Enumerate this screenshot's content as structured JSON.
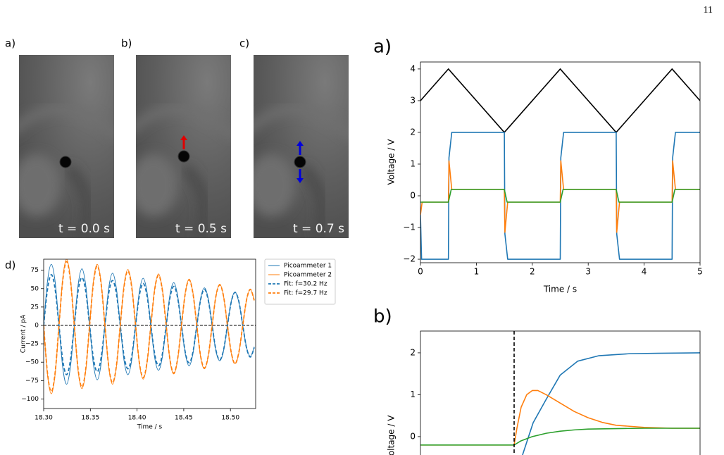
{
  "page_number": "11",
  "photos": [
    {
      "label": "a)",
      "caption": "t = 0.0 s"
    },
    {
      "label": "b)",
      "caption": "t = 0.5 s"
    },
    {
      "label": "c)",
      "caption": "t = 0.7 s"
    }
  ],
  "chart_data": [
    {
      "type": "line",
      "title": "d)",
      "xlabel": "Time / s",
      "ylabel": "Current / pA",
      "x": [
        18.3,
        18.3041,
        18.3082,
        18.3123,
        18.3164,
        18.3205,
        18.3246,
        18.3287,
        18.3328,
        18.3369,
        18.341,
        18.3451,
        18.3492,
        18.3533,
        18.3574,
        18.3615,
        18.3656,
        18.3697,
        18.3738,
        18.3779,
        18.382,
        18.3861,
        18.3902,
        18.3943,
        18.3984,
        18.4025,
        18.4066,
        18.4107,
        18.4148,
        18.4189,
        18.423,
        18.4271,
        18.4312,
        18.4353,
        18.4394,
        18.4435,
        18.4476,
        18.4517,
        18.4558,
        18.4599,
        18.464,
        18.4681,
        18.4722,
        18.4763,
        18.4804,
        18.4845,
        18.4886,
        18.4927,
        18.4968,
        18.5009,
        18.505,
        18.5091,
        18.5132,
        18.5173,
        18.5214,
        18.5255
      ],
      "series": [
        {
          "name": "Picoammeter 1",
          "color": "#1f77b4",
          "dash": false,
          "values": [
            0,
            60,
            83,
            59,
            0,
            -58,
            -80,
            -56,
            0,
            55,
            77,
            54,
            0,
            -53,
            -74,
            -52,
            0,
            51,
            71,
            50,
            0,
            -48,
            -67,
            -47,
            0,
            46,
            64,
            45,
            0,
            -44,
            -61,
            -43,
            0,
            42,
            58,
            40,
            0,
            -39,
            -55,
            -38,
            0,
            37,
            51,
            36,
            0,
            -35,
            -48,
            -34,
            0,
            33,
            45,
            31,
            0,
            -30,
            -42,
            -29
          ]
        },
        {
          "name": "Picoammeter 2",
          "color": "#ff7f0e",
          "dash": false,
          "values": [
            0,
            -67,
            -93,
            -66,
            0,
            64,
            90,
            63,
            0,
            -62,
            -86,
            -61,
            0,
            60,
            83,
            58,
            0,
            -57,
            -80,
            -56,
            0,
            55,
            76,
            54,
            0,
            -52,
            -73,
            -51,
            0,
            50,
            70,
            49,
            0,
            -48,
            -66,
            -46,
            0,
            45,
            63,
            44,
            0,
            -43,
            -59,
            -41,
            0,
            40,
            56,
            39,
            0,
            -38,
            -52,
            -37,
            0,
            35,
            49,
            34
          ]
        },
        {
          "name": "Fit: f=30.2 Hz",
          "color": "#1f77b4",
          "dash": true,
          "values": [
            0,
            49,
            69,
            49,
            0,
            -48,
            -67,
            -47,
            0,
            47,
            65,
            46,
            0,
            -45,
            -63,
            -44,
            0,
            44,
            61,
            43,
            0,
            -42,
            -59,
            -42,
            0,
            41,
            57,
            40,
            0,
            -39,
            -55,
            -39,
            0,
            38,
            53,
            37,
            0,
            -37,
            -51,
            -36,
            0,
            35,
            49,
            34,
            0,
            -34,
            -47,
            -33,
            0,
            32,
            45,
            32,
            0,
            -31,
            -43,
            -30
          ]
        },
        {
          "name": "Fit: f=29.7 Hz",
          "color": "#ff7f0e",
          "dash": true,
          "values": [
            0,
            -65,
            -90,
            -64,
            0,
            62,
            87,
            61,
            0,
            -60,
            -84,
            -59,
            0,
            58,
            81,
            57,
            0,
            -56,
            -78,
            -55,
            0,
            53,
            74,
            52,
            0,
            -51,
            -71,
            -50,
            0,
            49,
            68,
            48,
            0,
            -47,
            -65,
            -45,
            0,
            44,
            62,
            43,
            0,
            -42,
            -58,
            -41,
            0,
            40,
            55,
            39,
            0,
            -37,
            -52,
            -36,
            0,
            35,
            49,
            34
          ]
        }
      ],
      "hline": 0,
      "xlim": [
        18.3,
        18.527
      ],
      "ylim": [
        -113,
        90
      ],
      "xticks": [
        {
          "value": 18.3,
          "label": "18.30"
        },
        18.35,
        {
          "value": 18.4,
          "label": "18.40"
        },
        18.45,
        {
          "value": 18.5,
          "label": "18.50"
        }
      ],
      "yticks": [
        {
          "value": -100,
          "label": "−100"
        },
        {
          "value": -75,
          "label": "−75"
        },
        {
          "value": -50,
          "label": "−50"
        },
        {
          "value": -25,
          "label": "−25"
        },
        0,
        25,
        50,
        75
      ],
      "legend": "outside right"
    },
    {
      "type": "line",
      "title": "a)",
      "xlabel": "Time / s",
      "ylabel": "Voltage / V",
      "series": [
        {
          "color": "#000000",
          "x": [
            0,
            0.5,
            1.5,
            2.5,
            3.5,
            4.5,
            5
          ],
          "values": [
            3,
            4,
            2,
            4,
            2,
            4,
            3
          ]
        },
        {
          "color": "#1f77b4",
          "x": [
            0,
            0.02,
            0.5,
            0.51,
            0.56,
            1.5,
            1.51,
            1.56,
            2.5,
            2.51,
            2.56,
            3.5,
            3.51,
            3.56,
            4.5,
            4.51,
            4.56,
            5
          ],
          "values": [
            -0.6,
            -2,
            -2,
            1.2,
            2,
            2,
            -1.2,
            -2,
            -2,
            1.2,
            2,
            2,
            -1.2,
            -2,
            -2,
            1.2,
            2,
            2
          ]
        },
        {
          "color": "#ff7f0e",
          "x": [
            0,
            0.03,
            0.5,
            0.51,
            0.56,
            1.5,
            1.51,
            1.56,
            2.5,
            2.51,
            2.56,
            3.5,
            3.51,
            3.56,
            4.5,
            4.51,
            4.56,
            5
          ],
          "values": [
            -0.6,
            -0.2,
            -0.2,
            1.1,
            0.2,
            0.2,
            -1.15,
            -0.2,
            -0.2,
            1.1,
            0.2,
            0.2,
            -1.15,
            -0.2,
            -0.2,
            1.1,
            0.2,
            0.2
          ]
        },
        {
          "color": "#2ca02c",
          "x": [
            0,
            0.5,
            0.55,
            1.5,
            1.55,
            2.5,
            2.55,
            3.5,
            3.55,
            4.5,
            4.55,
            5
          ],
          "values": [
            -0.2,
            -0.2,
            0.2,
            0.2,
            -0.2,
            -0.2,
            0.2,
            0.2,
            -0.2,
            -0.2,
            0.2,
            0.2
          ]
        }
      ],
      "xlim": [
        0,
        5
      ],
      "ylim": [
        -2.11,
        4.22
      ],
      "xticks": [
        0,
        1,
        2,
        3,
        4,
        5
      ],
      "yticks": [
        {
          "value": -2,
          "label": "−2"
        },
        {
          "value": -1,
          "label": "−1"
        },
        0,
        1,
        2,
        3,
        4
      ]
    },
    {
      "type": "line",
      "title": "b)",
      "ylabel": "Voltage / V",
      "series": [
        {
          "color": "#1f77b4",
          "x": [
            0.365,
            0.403,
            0.448,
            0.5,
            0.562,
            0.637,
            0.75,
            0.85,
            1
          ],
          "values": [
            -0.44,
            0.33,
            0.87,
            1.47,
            1.8,
            1.93,
            1.98,
            1.99,
            2.0
          ]
        },
        {
          "color": "#ff7f0e",
          "x": [
            0,
            0.335,
            0.345,
            0.36,
            0.38,
            0.4,
            0.42,
            0.45,
            0.5,
            0.55,
            0.6,
            0.65,
            0.7,
            0.8,
            0.9,
            1
          ],
          "values": [
            -0.2,
            -0.2,
            0.2,
            0.7,
            1.0,
            1.1,
            1.1,
            1.0,
            0.8,
            0.6,
            0.45,
            0.34,
            0.27,
            0.22,
            0.2,
            0.2
          ]
        },
        {
          "color": "#2ca02c",
          "x": [
            0,
            0.335,
            0.36,
            0.4,
            0.45,
            0.5,
            0.55,
            0.6,
            0.7,
            0.8,
            1
          ],
          "values": [
            -0.2,
            -0.2,
            -0.1,
            0.0,
            0.08,
            0.13,
            0.16,
            0.18,
            0.19,
            0.2,
            0.2
          ]
        }
      ],
      "vline": 0.335,
      "xlim": [
        0,
        1
      ],
      "ylim": [
        -0.54,
        2.52
      ],
      "yticks": [
        0,
        1,
        2
      ]
    }
  ]
}
